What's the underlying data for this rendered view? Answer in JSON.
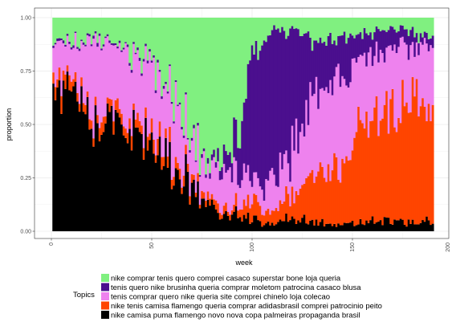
{
  "chart_data": {
    "type": "area",
    "stacking": "fill",
    "xlabel": "week",
    "ylabel": "proportion",
    "xlim": [
      0,
      200
    ],
    "ylim": [
      0,
      1
    ],
    "x_ticks": [
      "0",
      "50",
      "100",
      "150",
      "200"
    ],
    "y_ticks": [
      "0.00",
      "0.25",
      "0.50",
      "0.75",
      "1.00"
    ],
    "grid": true,
    "legend_title": "Topics",
    "legend_placement": "bottom",
    "x": [
      1,
      10,
      20,
      30,
      40,
      50,
      60,
      70,
      80,
      90,
      100,
      110,
      120,
      130,
      140,
      150,
      160,
      170,
      180,
      190
    ],
    "series": [
      {
        "name": "nike comprar tenis quero comprei casaco superstar bone loja queria",
        "color": "#80f080",
        "values": [
          0.12,
          0.1,
          0.1,
          0.12,
          0.15,
          0.22,
          0.32,
          0.55,
          0.72,
          0.6,
          0.18,
          0.06,
          0.05,
          0.1,
          0.12,
          0.08,
          0.06,
          0.05,
          0.06,
          0.1
        ]
      },
      {
        "name": "tenis quero nike brusinha queria comprar moletom patrocina casaco blusa",
        "color": "#4b0f8e",
        "values": [
          0.01,
          0.01,
          0.01,
          0.01,
          0.01,
          0.01,
          0.01,
          0.01,
          0.02,
          0.1,
          0.6,
          0.72,
          0.6,
          0.25,
          0.2,
          0.15,
          0.1,
          0.1,
          0.07,
          0.05
        ]
      },
      {
        "name": "tenis comprar quero nike queria site comprei chinelo loja colecao",
        "color": "#ee82ee",
        "values": [
          0.15,
          0.18,
          0.3,
          0.32,
          0.35,
          0.3,
          0.3,
          0.2,
          0.12,
          0.2,
          0.1,
          0.14,
          0.2,
          0.4,
          0.4,
          0.35,
          0.3,
          0.3,
          0.25,
          0.35
        ]
      },
      {
        "name": "nike tenis camisa flamengo queria comprar adidasbrasil comprei patrocinio peito",
        "color": "#ff4500",
        "values": [
          0.06,
          0.04,
          0.04,
          0.05,
          0.05,
          0.05,
          0.05,
          0.03,
          0.03,
          0.03,
          0.07,
          0.05,
          0.1,
          0.2,
          0.25,
          0.38,
          0.5,
          0.5,
          0.58,
          0.45
        ]
      },
      {
        "name": "nike camisa puma flamengo novo nova copa palmeiras propaganda brasil",
        "color": "#000000",
        "values": [
          0.66,
          0.67,
          0.55,
          0.5,
          0.44,
          0.42,
          0.32,
          0.21,
          0.11,
          0.07,
          0.05,
          0.03,
          0.05,
          0.05,
          0.03,
          0.04,
          0.04,
          0.05,
          0.04,
          0.05
        ]
      }
    ]
  }
}
